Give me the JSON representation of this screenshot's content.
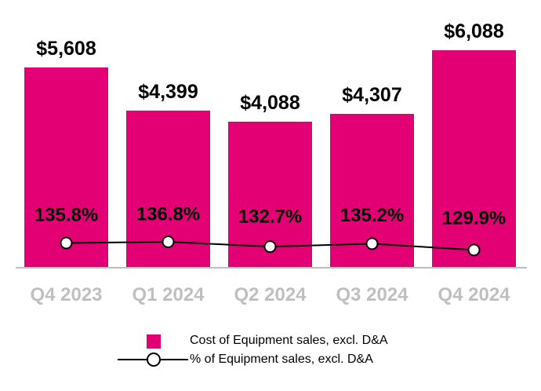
{
  "colors": {
    "bar": "#e20074",
    "line": "#000000",
    "axis": "#bfbfbf",
    "marker_fill": "#ffffff"
  },
  "chart_data": {
    "type": "bar",
    "categories": [
      "Q4 2023",
      "Q1 2024",
      "Q2 2024",
      "Q3 2024",
      "Q4 2024"
    ],
    "series": [
      {
        "name": "Cost of Equipment sales, excl. D&A",
        "type": "bar",
        "values": [
          5608,
          4399,
          4088,
          4307,
          6088
        ],
        "labels": [
          "$5,608",
          "$4,399",
          "$4,088",
          "$4,307",
          "$6,088"
        ]
      },
      {
        "name": "% of Equipment sales, excl. D&A",
        "type": "line",
        "values": [
          135.8,
          136.8,
          132.7,
          135.2,
          129.9
        ],
        "labels": [
          "135.8%",
          "136.8%",
          "132.7%",
          "135.2%",
          "129.9%"
        ]
      }
    ],
    "ylim": [
      0,
      6088
    ],
    "grid": false,
    "legend_position": "bottom"
  },
  "legend": {
    "bar_label": "Cost of Equipment sales, excl. D&A",
    "line_label": "% of Equipment sales, excl. D&A"
  }
}
